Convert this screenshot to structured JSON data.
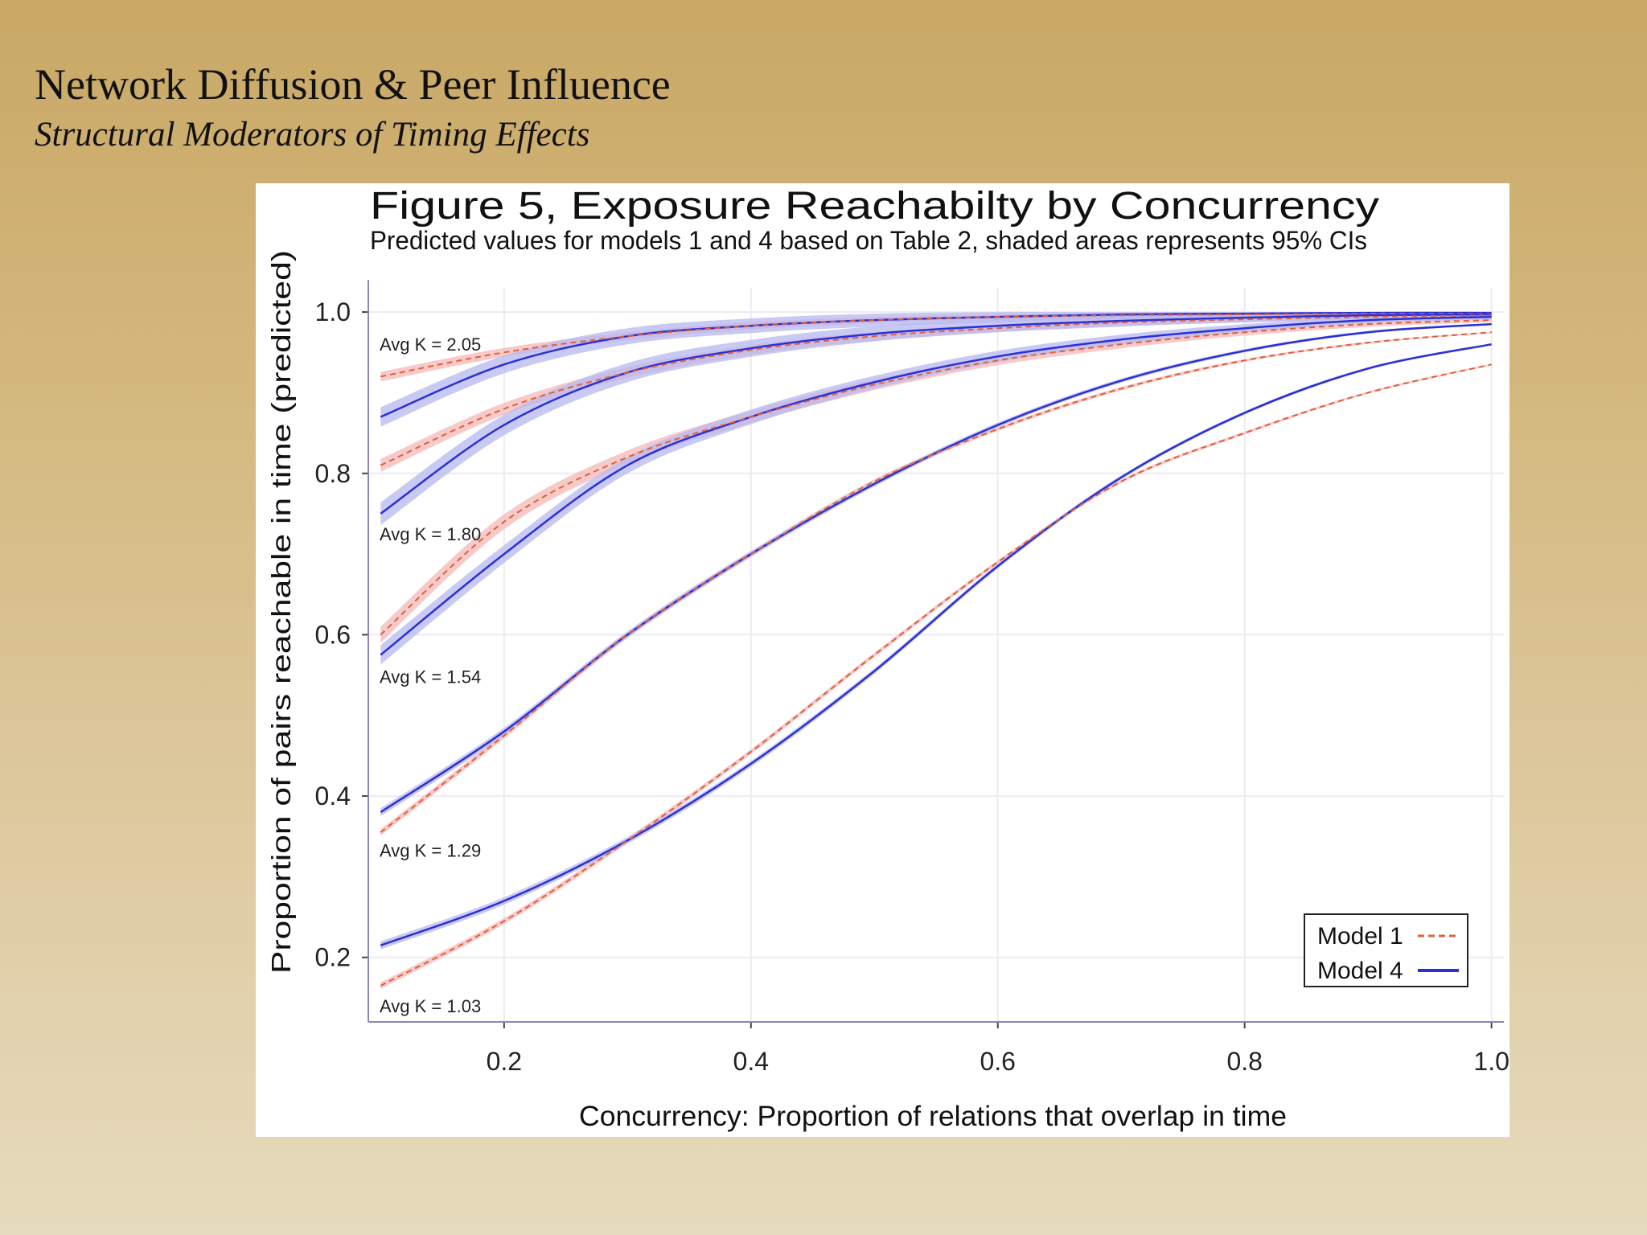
{
  "slide": {
    "title": "Network Diffusion & Peer Influence",
    "subtitle": "Structural Moderators of Timing Effects"
  },
  "colors": {
    "model1": "#e0603a",
    "model1_band": "#f4b8b8",
    "model4": "#2b2fd6",
    "model4_band": "#b7b8f0",
    "grid": "#ebebf2",
    "background_gradient_top": "#c9a866",
    "background_gradient_bottom": "#e6dbbd"
  },
  "chart_data": {
    "type": "line",
    "title": "Figure 5,  Exposure Reachabilty by Concurrency",
    "subtitle": "Predicted values for models 1 and 4 based on Table 2, shaded areas represents 95% CIs",
    "xlabel": "Concurrency: Proportion of relations that overlap in time",
    "ylabel": "Proportion of pairs reachable in time (predicted)",
    "xlim": [
      0.09,
      1.01
    ],
    "ylim": [
      0.12,
      1.03
    ],
    "x_ticks": [
      "0.2",
      "0.4",
      "0.6",
      "0.8",
      "1.0"
    ],
    "y_ticks": [
      "0.2",
      "0.4",
      "0.6",
      "0.8",
      "1.0"
    ],
    "grid": true,
    "legend": {
      "position": "bottom-right",
      "entries": [
        {
          "label": "Model 1",
          "style": "dashed",
          "color": "#e0603a"
        },
        {
          "label": "Model 4",
          "style": "solid",
          "color": "#2b2fd6"
        }
      ]
    },
    "x": [
      0.1,
      0.2,
      0.3,
      0.4,
      0.5,
      0.6,
      0.7,
      0.8,
      0.9,
      1.0
    ],
    "groups": [
      {
        "label": "Avg K = 2.05",
        "label_y": 0.96,
        "model1": [
          0.92,
          0.95,
          0.97,
          0.983,
          0.99,
          0.994,
          0.996,
          0.997,
          0.998,
          0.998
        ],
        "model4": [
          0.87,
          0.935,
          0.97,
          0.983,
          0.99,
          0.994,
          0.997,
          0.998,
          0.999,
          0.999
        ],
        "model1_ci": 0.006,
        "model4_ci": 0.012
      },
      {
        "label": "Avg K = 1.80",
        "label_y": 0.725,
        "model1": [
          0.81,
          0.88,
          0.925,
          0.953,
          0.97,
          0.98,
          0.987,
          0.991,
          0.994,
          0.996
        ],
        "model4": [
          0.75,
          0.86,
          0.925,
          0.955,
          0.973,
          0.983,
          0.989,
          0.993,
          0.996,
          0.997
        ],
        "model1_ci": 0.008,
        "model4_ci": 0.014
      },
      {
        "label": "Avg K = 1.54",
        "label_y": 0.548,
        "model1": [
          0.6,
          0.74,
          0.82,
          0.87,
          0.91,
          0.94,
          0.96,
          0.975,
          0.985,
          0.99
        ],
        "model4": [
          0.575,
          0.7,
          0.81,
          0.87,
          0.913,
          0.945,
          0.966,
          0.98,
          0.99,
          0.994
        ],
        "model1_ci": 0.01,
        "model4_ci": 0.012
      },
      {
        "label": "Avg K = 1.29",
        "label_y": 0.333,
        "model1": [
          0.355,
          0.475,
          0.6,
          0.7,
          0.79,
          0.855,
          0.905,
          0.94,
          0.962,
          0.975
        ],
        "model4": [
          0.38,
          0.48,
          0.6,
          0.7,
          0.787,
          0.86,
          0.915,
          0.952,
          0.975,
          0.985
        ],
        "model1_ci": 0.004,
        "model4_ci": 0.005
      },
      {
        "label": "Avg K = 1.03",
        "label_y": 0.14,
        "model1": [
          0.165,
          0.245,
          0.345,
          0.455,
          0.575,
          0.69,
          0.79,
          0.85,
          0.9,
          0.935
        ],
        "model4": [
          0.215,
          0.27,
          0.345,
          0.44,
          0.555,
          0.685,
          0.795,
          0.875,
          0.93,
          0.96
        ],
        "model1_ci": 0.004,
        "model4_ci": 0.005
      }
    ]
  }
}
